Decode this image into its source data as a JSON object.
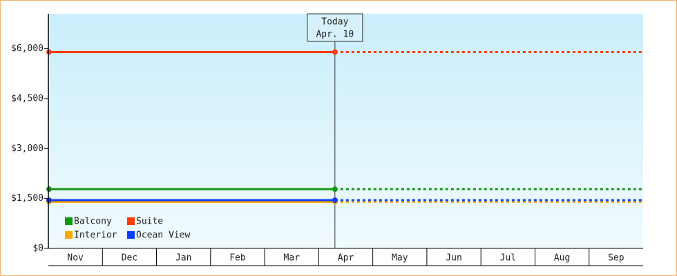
{
  "chart_data": {
    "type": "line",
    "categories": [
      "Nov",
      "Dec",
      "Jan",
      "Feb",
      "Mar",
      "Apr",
      "May",
      "Jun",
      "Jul",
      "Aug",
      "Sep"
    ],
    "ylim": [
      0,
      7050
    ],
    "yticks": [
      {
        "value": 0,
        "label": "$0"
      },
      {
        "value": 1500,
        "label": "$1,500"
      },
      {
        "value": 3000,
        "label": "$3,000"
      },
      {
        "value": 4500,
        "label": "$4,500"
      },
      {
        "value": 6000,
        "label": "$6,000"
      }
    ],
    "today": {
      "label": "Today",
      "date": "Apr. 10"
    },
    "series": [
      {
        "name": "Balcony",
        "color": "#139613",
        "value": 1780
      },
      {
        "name": "Suite",
        "color": "#ff3a0a",
        "value": 5900
      },
      {
        "name": "Interior",
        "color": "#ffa500",
        "value": 1400
      },
      {
        "name": "Ocean View",
        "color": "#0a3cff",
        "value": 1450
      }
    ]
  }
}
